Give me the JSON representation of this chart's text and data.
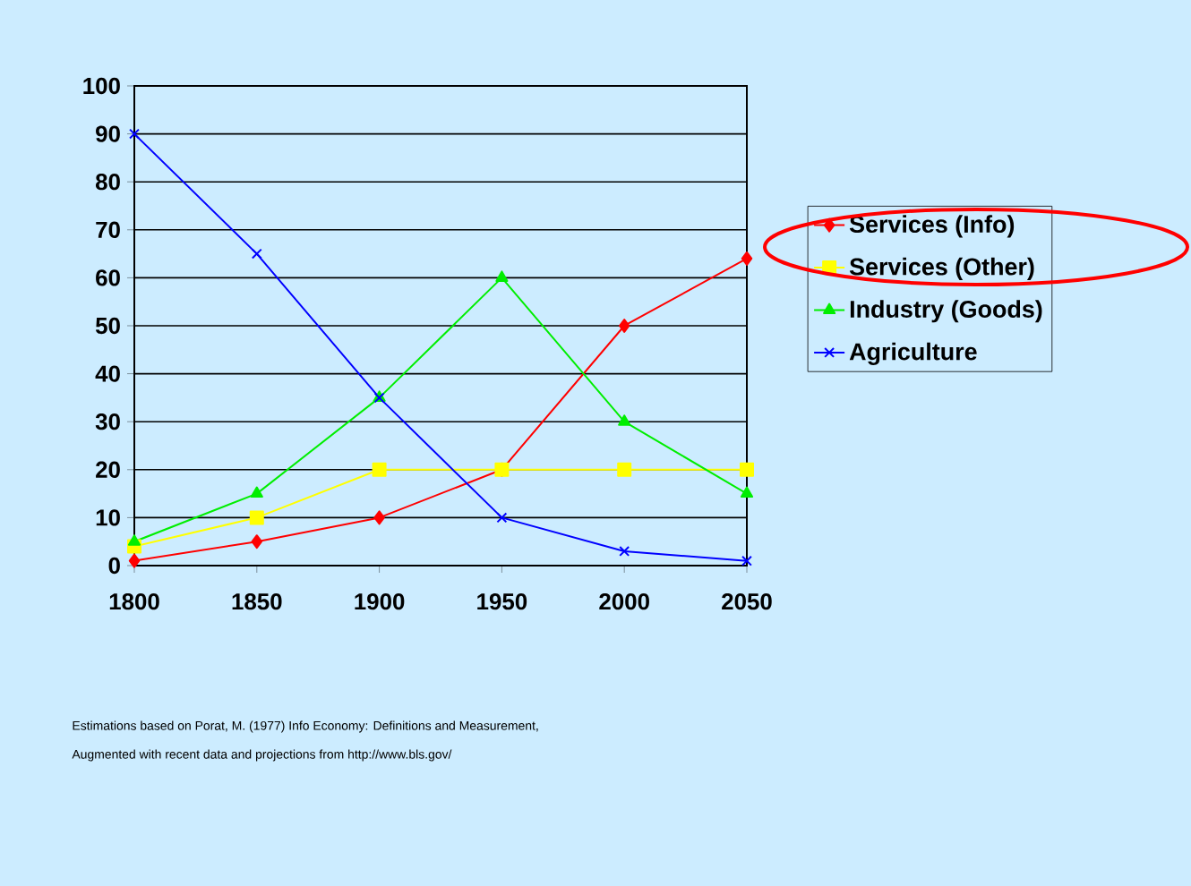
{
  "chart_data": {
    "type": "line",
    "categories": [
      "1800",
      "1850",
      "1900",
      "1950",
      "2000",
      "2050"
    ],
    "series": [
      {
        "name": "Services (Info)",
        "color": "#ff0000",
        "marker": "diamond",
        "values": [
          1,
          5,
          10,
          20,
          50,
          64
        ]
      },
      {
        "name": "Services (Other)",
        "color": "#ffff00",
        "marker": "square",
        "values": [
          4,
          10,
          20,
          20,
          20,
          20
        ]
      },
      {
        "name": "Industry (Goods)",
        "color": "#00ee00",
        "marker": "triangle",
        "values": [
          5,
          15,
          35,
          60,
          30,
          15
        ]
      },
      {
        "name": "Agriculture",
        "color": "#0000ff",
        "marker": "cross",
        "values": [
          90,
          65,
          35,
          10,
          3,
          1
        ]
      }
    ],
    "ylim": [
      0,
      100
    ],
    "yticks": [
      0,
      10,
      20,
      30,
      40,
      50,
      60,
      70,
      80,
      90,
      100
    ],
    "grid": "y",
    "legend": "right",
    "line_style": "solid",
    "annotations": [
      "Estimations based on Porat, M. (1977) Info Economy: Definitions and Measurement,",
      "Augmented with recent data and projections from http://www.bls.gov/"
    ]
  }
}
